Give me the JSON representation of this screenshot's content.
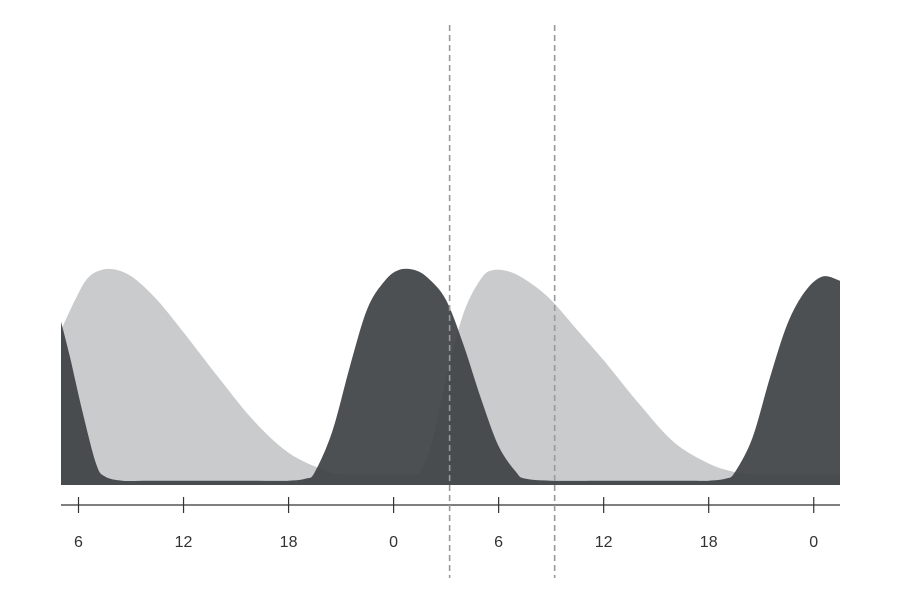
{
  "chart_data": {
    "type": "area",
    "title": "",
    "xlabel": "",
    "ylabel": "",
    "x_range_hours": [
      5,
      49.5
    ],
    "y_range": [
      0,
      1
    ],
    "grid": false,
    "x_ticks": [
      {
        "x": 6,
        "label": "6"
      },
      {
        "x": 12,
        "label": "12"
      },
      {
        "x": 18,
        "label": "18"
      },
      {
        "x": 24,
        "label": "0"
      },
      {
        "x": 30,
        "label": "6"
      },
      {
        "x": 36,
        "label": "12"
      },
      {
        "x": 42,
        "label": "18"
      },
      {
        "x": 48,
        "label": "0"
      }
    ],
    "reference_lines_x": [
      27.2,
      33.2
    ],
    "series": [
      {
        "color": "#c9cbcd",
        "points": [
          [
            5,
            0.72
          ],
          [
            5.8,
            0.86
          ],
          [
            6.5,
            0.96
          ],
          [
            7.3,
            1.0
          ],
          [
            8.2,
            1.0
          ],
          [
            9.2,
            0.96
          ],
          [
            10.5,
            0.86
          ],
          [
            12,
            0.71
          ],
          [
            14,
            0.5
          ],
          [
            16,
            0.3
          ],
          [
            18,
            0.15
          ],
          [
            20,
            0.07
          ],
          [
            21,
            0.05
          ],
          [
            22,
            0.05
          ],
          [
            23,
            0.05
          ],
          [
            24,
            0.05
          ],
          [
            25,
            0.05
          ],
          [
            25.5,
            0.06
          ],
          [
            26.2,
            0.2
          ],
          [
            27,
            0.5
          ],
          [
            28,
            0.8
          ],
          [
            29,
            0.96
          ],
          [
            29.7,
            1.0
          ],
          [
            30.7,
            0.99
          ],
          [
            31.8,
            0.94
          ],
          [
            33,
            0.86
          ],
          [
            34.5,
            0.72
          ],
          [
            36,
            0.58
          ],
          [
            38,
            0.38
          ],
          [
            40,
            0.2
          ],
          [
            42,
            0.1
          ],
          [
            43.5,
            0.06
          ],
          [
            44.5,
            0.05
          ],
          [
            45.5,
            0.05
          ],
          [
            46.5,
            0.05
          ],
          [
            47.5,
            0.05
          ],
          [
            48,
            0.05
          ],
          [
            49,
            0.05
          ],
          [
            49.5,
            0.05
          ]
        ]
      },
      {
        "color": "#3d4144",
        "opacity": 0.92,
        "points": [
          [
            5,
            0.76
          ],
          [
            5.5,
            0.6
          ],
          [
            6.2,
            0.35
          ],
          [
            7,
            0.1
          ],
          [
            7.5,
            0.04
          ],
          [
            8.5,
            0.02
          ],
          [
            10,
            0.02
          ],
          [
            12,
            0.02
          ],
          [
            14,
            0.02
          ],
          [
            16,
            0.02
          ],
          [
            18,
            0.02
          ],
          [
            19,
            0.03
          ],
          [
            19.5,
            0.06
          ],
          [
            20.5,
            0.25
          ],
          [
            21.5,
            0.55
          ],
          [
            22.5,
            0.82
          ],
          [
            23.5,
            0.95
          ],
          [
            24.3,
            1.0
          ],
          [
            25.2,
            1.0
          ],
          [
            26,
            0.96
          ],
          [
            27,
            0.86
          ],
          [
            28,
            0.65
          ],
          [
            29,
            0.4
          ],
          [
            30,
            0.18
          ],
          [
            31,
            0.06
          ],
          [
            31.5,
            0.03
          ],
          [
            33,
            0.02
          ],
          [
            36,
            0.02
          ],
          [
            39,
            0.02
          ],
          [
            41,
            0.02
          ],
          [
            42,
            0.02
          ],
          [
            43,
            0.03
          ],
          [
            43.5,
            0.06
          ],
          [
            44.5,
            0.22
          ],
          [
            45.5,
            0.5
          ],
          [
            46.5,
            0.75
          ],
          [
            47.5,
            0.9
          ],
          [
            48.5,
            0.97
          ],
          [
            49.5,
            0.95
          ]
        ]
      }
    ]
  }
}
